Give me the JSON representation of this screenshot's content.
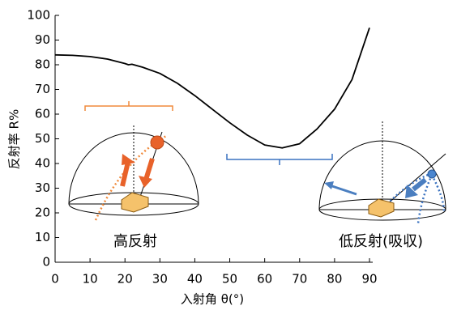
{
  "chart_data": {
    "type": "line",
    "x_label": "入射角 θ(°)",
    "y_label": "反射率 R%",
    "annotations": [
      "高反射",
      "低反射(吸収)"
    ],
    "x": [
      0,
      5,
      10,
      15,
      20,
      21,
      22,
      25,
      30,
      35,
      40,
      45,
      50,
      55,
      60,
      65,
      70,
      75,
      80,
      85,
      90
    ],
    "values": [
      84,
      83.8,
      83.3,
      82.3,
      80.5,
      80,
      80.2,
      79,
      76.5,
      72.5,
      67.5,
      62,
      56.5,
      51.5,
      47.5,
      46.3,
      48,
      54,
      62,
      74,
      95
    ],
    "color": "#000000",
    "xlim": [
      0,
      90
    ],
    "xticks": [
      0,
      10,
      20,
      30,
      40,
      50,
      60,
      70,
      80,
      90
    ],
    "ylim": [
      0,
      100
    ],
    "yticks": [
      0,
      10,
      20,
      30,
      40,
      50,
      60,
      70,
      80,
      90,
      100
    ]
  }
}
